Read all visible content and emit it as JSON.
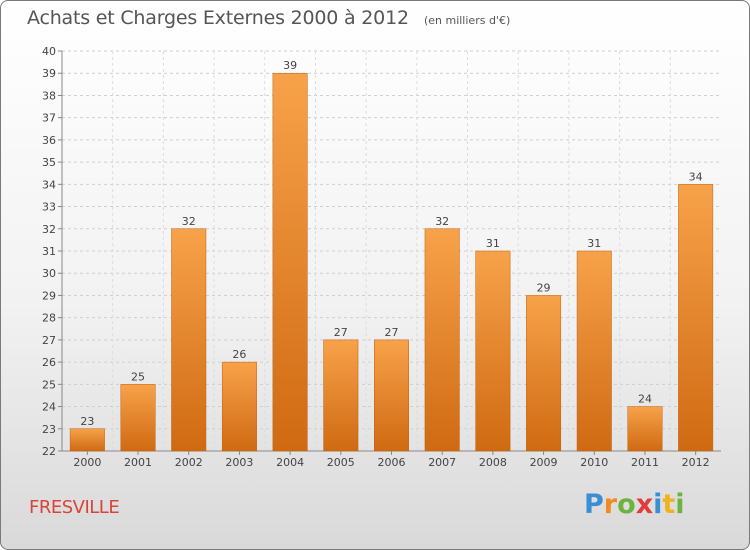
{
  "header": {
    "title": "Achats et Charges Externes 2000 à 2012",
    "subtitle": "(en milliers d'€)"
  },
  "footer": {
    "commune": "FRESVILLE",
    "logo_letters": [
      "P",
      "r",
      "o",
      "x",
      "i",
      "t",
      "i"
    ],
    "logo_colors": [
      "#3a8fd4",
      "#f28b1e",
      "#6cb33f",
      "#e23b3b",
      "#3a8fd4",
      "#f2b21e",
      "#6cb33f"
    ]
  },
  "chart_data": {
    "type": "bar",
    "categories": [
      "2000",
      "2001",
      "2002",
      "2003",
      "2004",
      "2005",
      "2006",
      "2007",
      "2008",
      "2009",
      "2010",
      "2011",
      "2012"
    ],
    "values": [
      23,
      25,
      32,
      26,
      39,
      27,
      27,
      32,
      31,
      29,
      31,
      24,
      34
    ],
    "ylim": [
      22,
      40
    ],
    "yticks": [
      22,
      23,
      24,
      25,
      26,
      27,
      28,
      29,
      30,
      31,
      32,
      33,
      34,
      35,
      36,
      37,
      38,
      39,
      40
    ],
    "grid": true,
    "bar_color_top": "#f7a24a",
    "bar_color_bottom": "#cf6a12"
  }
}
